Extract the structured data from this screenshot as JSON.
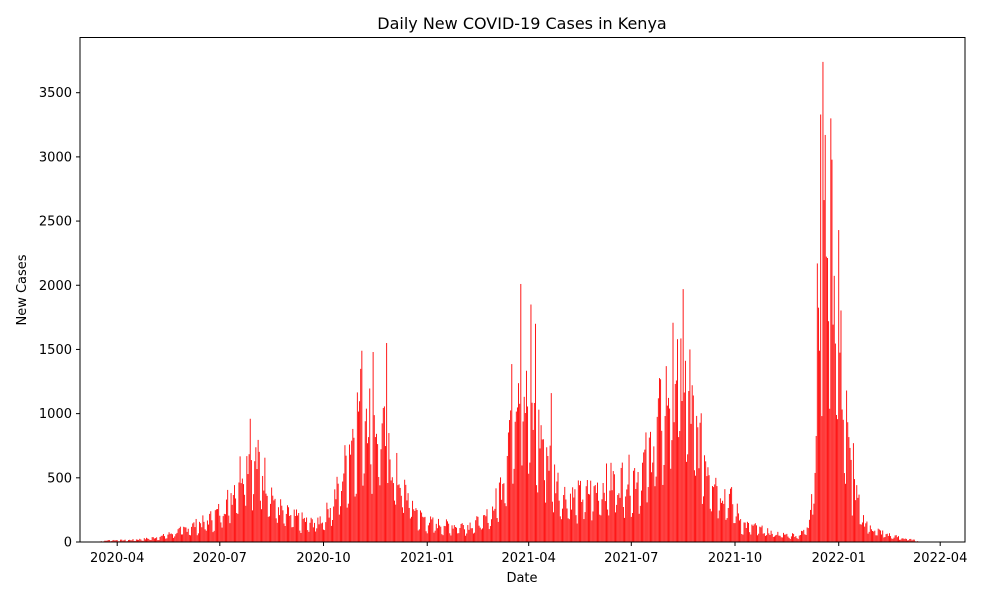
{
  "chart_data": {
    "type": "bar",
    "title": "Daily New COVID-19 Cases in Kenya",
    "xlabel": "Date",
    "ylabel": "New Cases",
    "bar_color": "#ff0000",
    "xlim": [
      "2020-02-28",
      "2022-04-23"
    ],
    "ylim": [
      0,
      3930
    ],
    "x_ticks": [
      {
        "date": "2020-04-01",
        "label": "2020-04"
      },
      {
        "date": "2020-07-01",
        "label": "2020-07"
      },
      {
        "date": "2020-10-01",
        "label": "2020-10"
      },
      {
        "date": "2021-01-01",
        "label": "2021-01"
      },
      {
        "date": "2021-04-01",
        "label": "2021-04"
      },
      {
        "date": "2021-07-01",
        "label": "2021-07"
      },
      {
        "date": "2021-10-01",
        "label": "2021-10"
      },
      {
        "date": "2022-01-01",
        "label": "2022-01"
      },
      {
        "date": "2022-04-01",
        "label": "2022-04"
      }
    ],
    "y_ticks": [
      0,
      500,
      1000,
      1500,
      2000,
      2500,
      3000,
      3500
    ],
    "grid": false,
    "legend": false,
    "series": [
      {
        "dates": [
          "2020-03-13",
          "2020-03-25",
          "2020-04-10",
          "2020-04-25",
          "2020-05-10",
          "2020-05-25",
          "2020-06-08",
          "2020-06-20",
          "2020-07-01",
          "2020-07-10",
          "2020-07-18",
          "2020-07-24",
          "2020-07-30",
          "2020-08-05",
          "2020-08-12",
          "2020-08-20",
          "2020-08-28",
          "2020-09-08",
          "2020-09-20",
          "2020-10-01",
          "2020-10-10",
          "2020-10-18",
          "2020-10-25",
          "2020-11-01",
          "2020-11-07",
          "2020-11-13",
          "2020-11-19",
          "2020-11-25",
          "2020-12-01",
          "2020-12-08",
          "2020-12-15",
          "2020-12-25",
          "2021-01-05",
          "2021-01-20",
          "2021-02-05",
          "2021-02-20",
          "2021-03-01",
          "2021-03-08",
          "2021-03-14",
          "2021-03-19",
          "2021-03-24",
          "2021-03-29",
          "2021-04-03",
          "2021-04-08",
          "2021-04-15",
          "2021-04-22",
          "2021-05-01",
          "2021-05-10",
          "2021-05-20",
          "2021-06-01",
          "2021-06-10",
          "2021-06-20",
          "2021-07-01",
          "2021-07-10",
          "2021-07-20",
          "2021-07-28",
          "2021-08-04",
          "2021-08-10",
          "2021-08-16",
          "2021-08-22",
          "2021-08-30",
          "2021-09-08",
          "2021-09-18",
          "2021-09-28",
          "2021-10-08",
          "2021-10-20",
          "2021-11-01",
          "2021-11-15",
          "2021-11-28",
          "2021-12-05",
          "2021-12-10",
          "2021-12-14",
          "2021-12-18",
          "2021-12-22",
          "2021-12-26",
          "2021-12-30",
          "2022-01-03",
          "2022-01-07",
          "2022-01-11",
          "2022-01-16",
          "2022-01-22",
          "2022-01-30",
          "2022-02-08",
          "2022-02-18",
          "2022-02-28",
          "2022-03-12"
        ],
        "values": [
          0,
          15,
          15,
          25,
          45,
          90,
          140,
          180,
          260,
          380,
          560,
          760,
          700,
          650,
          520,
          320,
          240,
          200,
          160,
          200,
          350,
          550,
          850,
          1100,
          1200,
          1050,
          950,
          850,
          650,
          500,
          380,
          220,
          160,
          140,
          140,
          180,
          280,
          500,
          900,
          1300,
          1500,
          1200,
          1050,
          950,
          850,
          600,
          400,
          380,
          400,
          450,
          500,
          520,
          550,
          600,
          850,
          1100,
          1300,
          1500,
          1400,
          1150,
          850,
          650,
          450,
          350,
          150,
          120,
          80,
          60,
          60,
          150,
          600,
          1500,
          2400,
          3000,
          2600,
          2000,
          1500,
          1000,
          650,
          400,
          200,
          120,
          80,
          50,
          30,
          10
        ],
        "peaks": [
          {
            "date": "2020-07-28",
            "value": 960
          },
          {
            "date": "2020-11-04",
            "value": 1490
          },
          {
            "date": "2020-11-14",
            "value": 1480
          },
          {
            "date": "2020-11-26",
            "value": 1550
          },
          {
            "date": "2021-03-25",
            "value": 2010
          },
          {
            "date": "2021-04-03",
            "value": 1850
          },
          {
            "date": "2021-04-07",
            "value": 1700
          },
          {
            "date": "2021-04-21",
            "value": 1160
          },
          {
            "date": "2021-08-11",
            "value": 1580
          },
          {
            "date": "2021-08-16",
            "value": 1970
          },
          {
            "date": "2021-08-22",
            "value": 1500
          },
          {
            "date": "2021-12-13",
            "value": 2170
          },
          {
            "date": "2021-12-16",
            "value": 3330
          },
          {
            "date": "2021-12-18",
            "value": 3740
          },
          {
            "date": "2021-12-25",
            "value": 3300
          },
          {
            "date": "2022-01-01",
            "value": 2430
          },
          {
            "date": "2022-01-08",
            "value": 1180
          },
          {
            "date": "2022-01-14",
            "value": 770
          }
        ]
      }
    ]
  }
}
